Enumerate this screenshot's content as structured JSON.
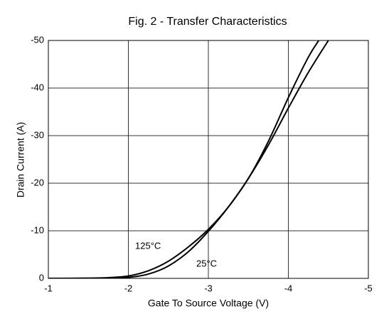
{
  "chart_data": {
    "type": "line",
    "title": "Fig. 2 - Transfer Characteristics",
    "x_label": "Gate To Source Voltage (V)",
    "y_label": "Drain Current (A)",
    "xlim": [
      -1,
      -5
    ],
    "xticks": [
      -1,
      -2,
      -3,
      -4,
      -5
    ],
    "ylim": [
      0,
      -50
    ],
    "yticks": [
      0,
      -10,
      -20,
      -30,
      -40,
      -50
    ],
    "grid": true,
    "series": [
      {
        "name": "125°C",
        "color": "#000000",
        "x": [
          -1,
          -1.5,
          -1.75,
          -2,
          -2.25,
          -2.5,
          -2.75,
          -3,
          -3.25,
          -3.5,
          -3.75,
          -4,
          -4.25,
          -4.5
        ],
        "values": [
          0,
          -0.05,
          -0.15,
          -0.5,
          -1.6,
          -3.6,
          -6.6,
          -10.3,
          -15,
          -21,
          -28,
          -35.8,
          -43.3,
          -50
        ]
      },
      {
        "name": "25°C",
        "color": "#000000",
        "x": [
          -1,
          -1.5,
          -1.75,
          -2,
          -2.25,
          -2.5,
          -2.75,
          -3,
          -3.25,
          -3.5,
          -3.75,
          -4,
          -4.25,
          -4.38
        ],
        "values": [
          0,
          0,
          -0.05,
          -0.2,
          -0.9,
          -2.6,
          -5.6,
          -9.9,
          -15,
          -21,
          -28.8,
          -38,
          -46.5,
          -50
        ]
      }
    ]
  }
}
